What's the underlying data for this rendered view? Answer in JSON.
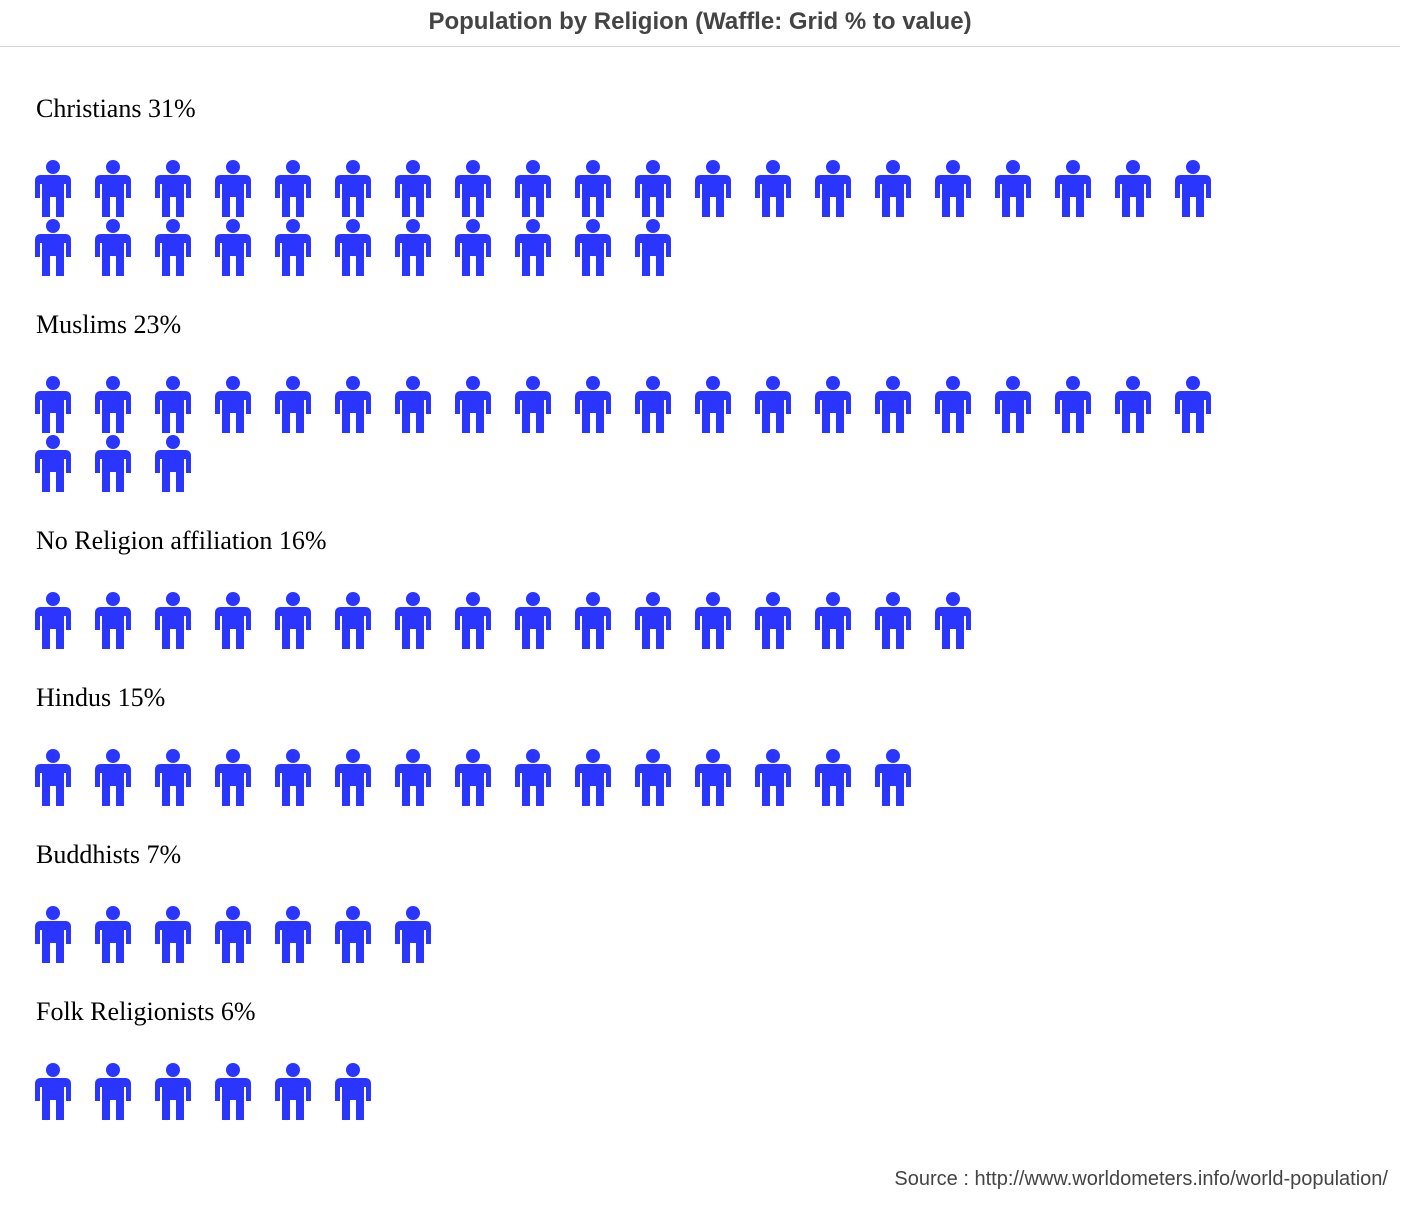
{
  "chart_data": {
    "type": "waffle",
    "title": "Population by Religion (Waffle: Grid % to value)",
    "icon": "person-icon",
    "icon_color": "#2a35ff",
    "units_per_row": 20,
    "categories": [
      {
        "name": "Christians",
        "value": 31,
        "label": "Christians 31%"
      },
      {
        "name": "Muslims",
        "value": 23,
        "label": "Muslims 23%"
      },
      {
        "name": "No Religion affiliation",
        "value": 16,
        "label": "No Religion affiliation 16%"
      },
      {
        "name": "Hindus",
        "value": 15,
        "label": "Hindus 15%"
      },
      {
        "name": "Buddhists",
        "value": 7,
        "label": "Buddhists 7%"
      },
      {
        "name": "Folk Religionists",
        "value": 6,
        "label": "Folk Religionists 6%"
      }
    ],
    "source": "Source : http://www.worldometers.info/world-population/"
  }
}
